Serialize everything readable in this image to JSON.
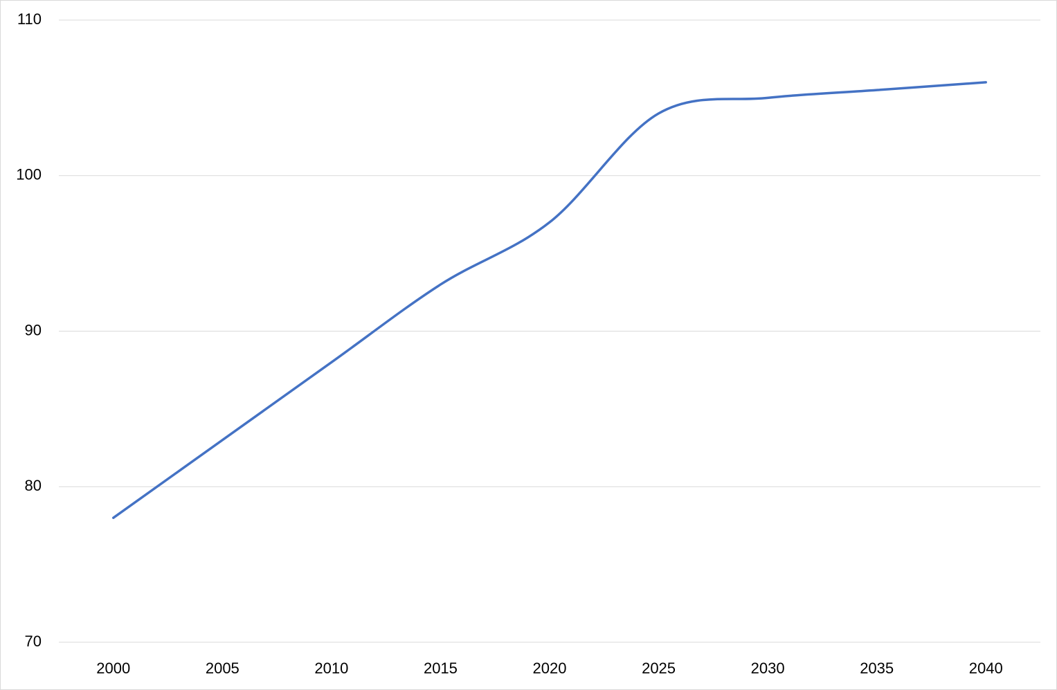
{
  "chart_data": {
    "type": "line",
    "categories": [
      "2000",
      "2005",
      "2010",
      "2015",
      "2020",
      "2025",
      "2030",
      "2035",
      "2040"
    ],
    "series": [
      {
        "color": "#4472c4",
        "values": [
          78,
          83,
          88,
          93,
          97,
          104,
          105,
          105.5,
          106
        ]
      }
    ],
    "ylim": [
      70,
      110
    ],
    "yticks": [
      70,
      80,
      90,
      100,
      110
    ],
    "grid": true,
    "smooth": true
  }
}
